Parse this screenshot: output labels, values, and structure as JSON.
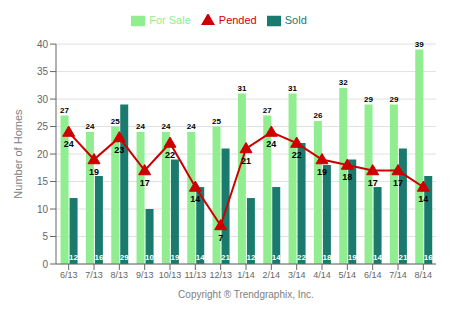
{
  "chart_data": {
    "type": "bar",
    "categories": [
      "6/13",
      "7/13",
      "8/13",
      "9/13",
      "10/13",
      "11/13",
      "12/13",
      "1/14",
      "2/14",
      "3/14",
      "4/14",
      "5/14",
      "6/14",
      "7/14",
      "8/14"
    ],
    "series": [
      {
        "name": "For Sale",
        "type": "bar",
        "color": "#90EE90",
        "values": [
          27,
          24,
          25,
          24,
          24,
          24,
          25,
          31,
          27,
          31,
          26,
          32,
          29,
          29,
          39
        ]
      },
      {
        "name": "Sold",
        "type": "bar",
        "color": "#1a7a6e",
        "values": [
          12,
          16,
          29,
          10,
          19,
          14,
          21,
          12,
          14,
          22,
          18,
          19,
          14,
          21,
          16
        ]
      },
      {
        "name": "Pended",
        "type": "line",
        "color": "#cc0000",
        "marker": "triangle",
        "values": [
          24,
          19,
          23,
          17,
          22,
          14,
          7,
          21,
          24,
          22,
          19,
          18,
          17,
          17,
          14
        ]
      }
    ],
    "ylabel": "Number of Homes",
    "xlabel": "Copyright ® Trendgraphix, Inc.",
    "ylim": [
      0,
      40
    ],
    "yticks": [
      0,
      5,
      10,
      15,
      20,
      25,
      30,
      35,
      40
    ],
    "grid": true,
    "legend": "top",
    "data_labels": true
  }
}
